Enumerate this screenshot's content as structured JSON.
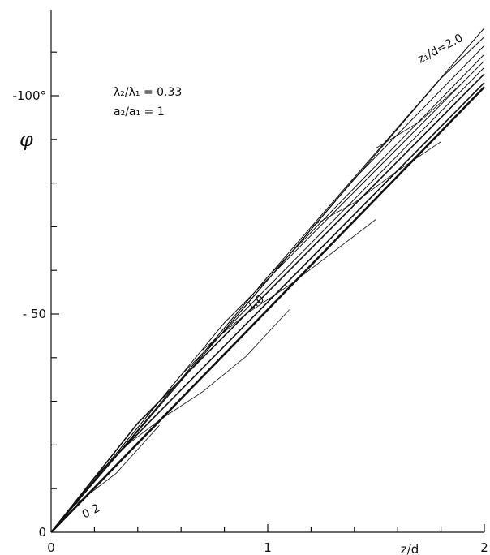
{
  "chart_data": {
    "type": "line",
    "xlabel": "z/d",
    "ylabel": "φ",
    "xlim": [
      0,
      2
    ],
    "ylim": [
      0,
      -120
    ],
    "x_ticks": [
      {
        "value": 0,
        "label": "0"
      },
      {
        "value": 1,
        "label": "1"
      },
      {
        "value": 2,
        "label": "2"
      }
    ],
    "y_ticks": [
      {
        "value": 0,
        "label": "0"
      },
      {
        "value": -50,
        "label": "- 50"
      },
      {
        "value": -100,
        "label": "-100°"
      }
    ],
    "annotations": {
      "ratio_lambda": "λ₂/λ₁ = 0.33",
      "ratio_a": "a₂/a₁ = 1",
      "curve_top_label": "z₁/d=2.0",
      "curve_mid_label": "1.0",
      "curve_low_label": "0.2"
    },
    "series": [
      {
        "name": "z₁/d=2.0",
        "x": [
          0,
          1,
          2
        ],
        "y": [
          0,
          -58.5,
          -115.5
        ]
      },
      {
        "name": "",
        "x": [
          0,
          1.8,
          2
        ],
        "y": [
          0,
          -104,
          -113.5
        ]
      },
      {
        "name": "",
        "x": [
          0,
          1.4,
          2
        ],
        "y": [
          0,
          -81,
          -111.5
        ]
      },
      {
        "name": "1.0",
        "x": [
          0,
          1.0,
          2
        ],
        "y": [
          0,
          -58.5,
          -109.5
        ]
      },
      {
        "name": "",
        "x": [
          0,
          0.8,
          2
        ],
        "y": [
          0,
          -48,
          -108
        ]
      },
      {
        "name": "",
        "x": [
          0,
          0.6,
          2
        ],
        "y": [
          0,
          -36,
          -106.5
        ]
      },
      {
        "name": "",
        "x": [
          0,
          0.4,
          2
        ],
        "y": [
          0,
          -25,
          -105
        ]
      },
      {
        "name": "0.2",
        "x": [
          0,
          0.2,
          2
        ],
        "y": [
          0,
          -12.5,
          -103
        ]
      },
      {
        "name": "",
        "x": [
          0,
          2
        ],
        "y": [
          0,
          -102
        ]
      }
    ],
    "connectors": [
      {
        "x": [
          0.1,
          0.3,
          0.5
        ],
        "y": [
          -5.9,
          -13.5,
          -24.5
        ]
      },
      {
        "x": [
          0.3,
          0.5,
          0.7,
          0.9,
          1.1
        ],
        "y": [
          -18.1,
          -25.7,
          -32.2,
          -40.3,
          -51
        ]
      },
      {
        "x": [
          0.7,
          0.9,
          1.1,
          1.3,
          1.5
        ],
        "y": [
          -41.8,
          -50,
          -56.6,
          -64.1,
          -71.7
        ]
      },
      {
        "x": [
          1.2,
          1.4,
          1.6,
          1.8
        ],
        "y": [
          -70,
          -75.5,
          -82.8,
          -89.5
        ]
      },
      {
        "x": [
          1.5,
          1.7,
          1.9
        ],
        "y": [
          -88,
          -94,
          -103
        ]
      }
    ]
  }
}
